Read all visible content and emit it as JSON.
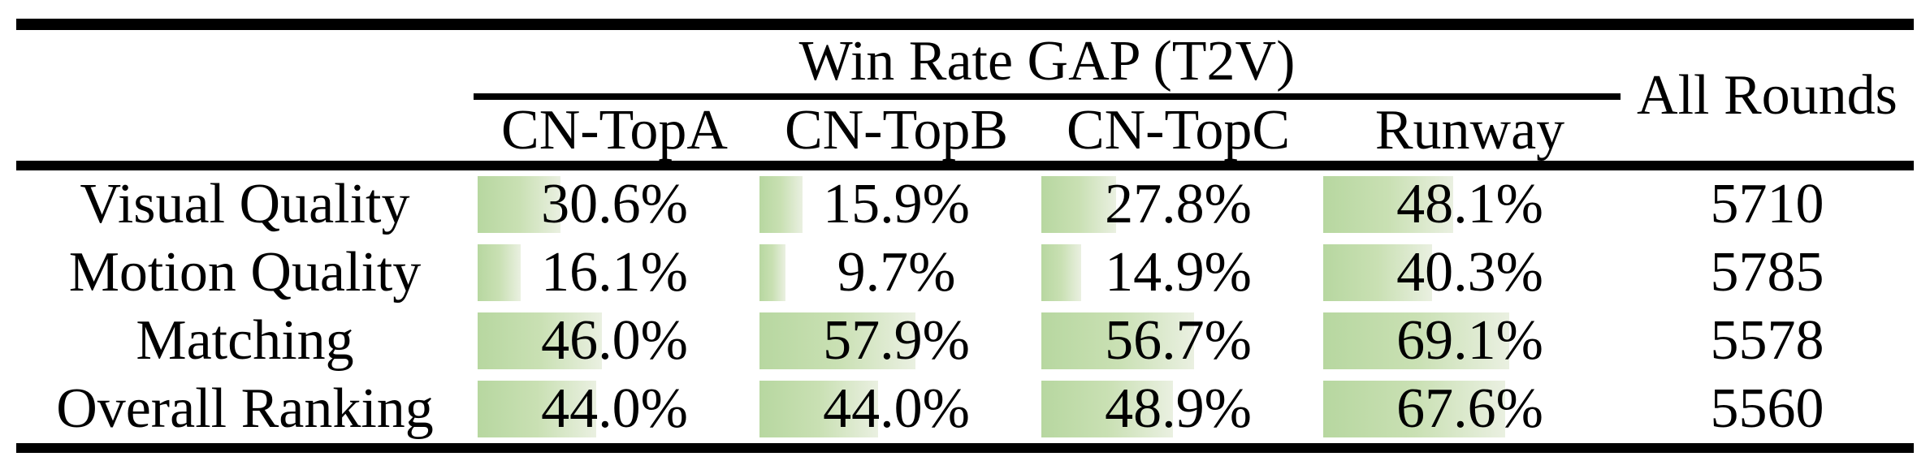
{
  "colors": {
    "bar_gradient_start": "#b7d7a0",
    "bar_gradient_mid": "#c9e0b3",
    "bar_gradient_end": "#eaf0e1",
    "rule_color": "#000000",
    "text_color": "#000000"
  },
  "table": {
    "group_header": "Win Rate GAP (T2V)",
    "all_rounds_header": "All Rounds",
    "columns": [
      "CN-TopA",
      "CN-TopB",
      "CN-TopC",
      "Runway"
    ],
    "rows": [
      {
        "label": "Visual Quality",
        "cells": [
          {
            "text": "30.6%",
            "value": 30.6
          },
          {
            "text": "15.9%",
            "value": 15.9
          },
          {
            "text": "27.8%",
            "value": 27.8
          },
          {
            "text": "48.1%",
            "value": 48.1
          }
        ],
        "all_rounds": "5710"
      },
      {
        "label": "Motion Quality",
        "cells": [
          {
            "text": "16.1%",
            "value": 16.1
          },
          {
            "text": "9.7%",
            "value": 9.7
          },
          {
            "text": "14.9%",
            "value": 14.9
          },
          {
            "text": "40.3%",
            "value": 40.3
          }
        ],
        "all_rounds": "5785"
      },
      {
        "label": "Matching",
        "cells": [
          {
            "text": "46.0%",
            "value": 46.0
          },
          {
            "text": "57.9%",
            "value": 57.9
          },
          {
            "text": "56.7%",
            "value": 56.7
          },
          {
            "text": "69.1%",
            "value": 69.1
          }
        ],
        "all_rounds": "5578"
      },
      {
        "label": "Overall Ranking",
        "cells": [
          {
            "text": "44.0%",
            "value": 44.0
          },
          {
            "text": "44.0%",
            "value": 44.0
          },
          {
            "text": "48.9%",
            "value": 48.9
          },
          {
            "text": "67.6%",
            "value": 67.6
          }
        ],
        "all_rounds": "5560"
      }
    ]
  }
}
